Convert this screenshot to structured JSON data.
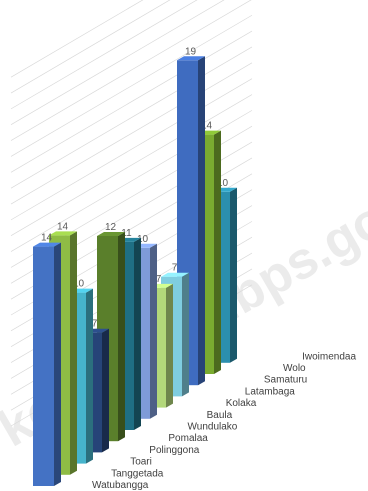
{
  "watermark": "kolakakab.bps.go",
  "chart_data": {
    "type": "bar",
    "style": "3d-clustered-column",
    "title": "",
    "xlabel": "",
    "ylabel": "",
    "ylim": [
      0,
      20
    ],
    "grid": true,
    "legend": "none",
    "categories": [
      "Watubangga",
      "Tanggetada",
      "Toari",
      "Polinggona",
      "Pomalaa",
      "Wundulako",
      "Baula",
      "Kolaka",
      "Latambaga",
      "Samaturu",
      "Wolo",
      "Iwoimendaa"
    ],
    "values": [
      14,
      14,
      10,
      7,
      12,
      11,
      10,
      7,
      7,
      19,
      14,
      10
    ],
    "colors": [
      "#4472c4",
      "#8fbc45",
      "#46b4cc",
      "#264478",
      "#5a7f2b",
      "#1f6f84",
      "#7e9bd8",
      "#b3d87a",
      "#7fcde0",
      "#3f6cc0",
      "#7aab30",
      "#2b8fae"
    ]
  }
}
